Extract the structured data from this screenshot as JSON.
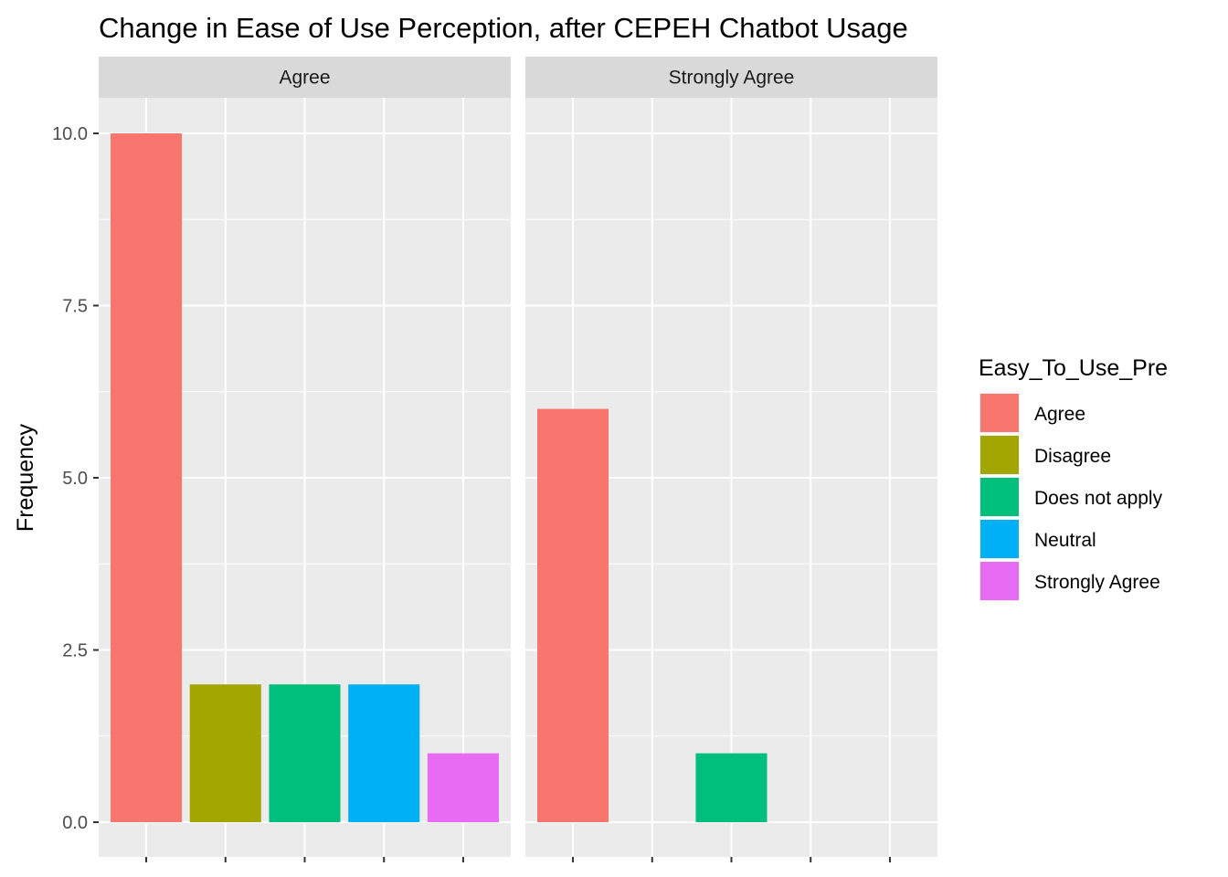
{
  "chart_data": {
    "type": "bar",
    "title": "Change in Ease of Use Perception, after CEPEH Chatbot Usage",
    "ylabel": "Frequency",
    "xlabel": "",
    "ylim": [
      0,
      10
    ],
    "yticks": [
      0,
      2.5,
      5,
      7.5,
      10
    ],
    "ytick_labels": [
      "0.0",
      "2.5",
      "5.0",
      "7.5",
      "10.0"
    ],
    "categories": [
      "Agree",
      "Disagree",
      "Does not apply",
      "Neutral",
      "Strongly Agree"
    ],
    "grid": true,
    "legend": {
      "title": "Easy_To_Use_Pre",
      "placement": "right",
      "entries": [
        {
          "label": "Agree",
          "color": "#F8766D"
        },
        {
          "label": "Disagree",
          "color": "#A3A500"
        },
        {
          "label": "Does not apply",
          "color": "#00BF7D"
        },
        {
          "label": "Neutral",
          "color": "#00B0F6"
        },
        {
          "label": "Strongly Agree",
          "color": "#E76BF3"
        }
      ]
    },
    "facets": [
      {
        "label": "Agree",
        "values": [
          10,
          2,
          2,
          2,
          1
        ]
      },
      {
        "label": "Strongly Agree",
        "values": [
          6,
          0,
          1,
          0,
          0
        ]
      }
    ]
  }
}
